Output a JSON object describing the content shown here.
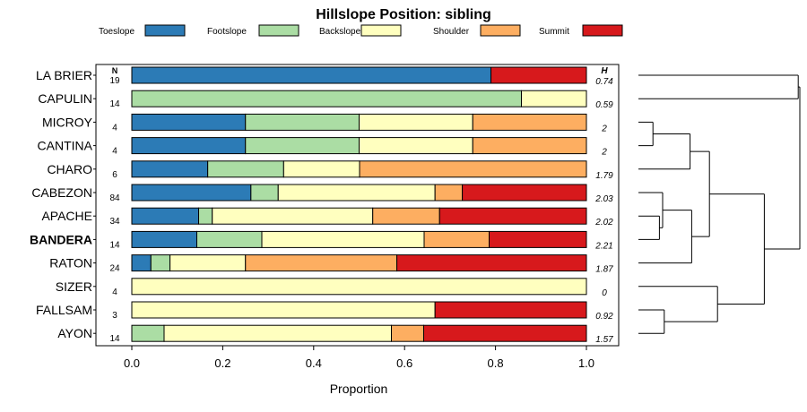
{
  "chart_data": {
    "type": "bar",
    "stacked": "horizontal-proportion",
    "title": "Hillslope Position: sibling",
    "xlabel": "Proportion",
    "ylabel": "",
    "xlim": [
      0,
      1
    ],
    "x_ticks": [
      "0.0",
      "0.2",
      "0.4",
      "0.6",
      "0.8",
      "1.0"
    ],
    "x_tick_values": [
      0,
      0.2,
      0.4,
      0.6,
      0.8,
      1.0
    ],
    "legend": [
      {
        "name": "Toeslope",
        "color": "#2C7BB6"
      },
      {
        "name": "Footslope",
        "color": "#ABDDA4"
      },
      {
        "name": "Backslope",
        "color": "#FFFFBF"
      },
      {
        "name": "Shoulder",
        "color": "#FDAE61"
      },
      {
        "name": "Summit",
        "color": "#D7191C"
      }
    ],
    "n_header": "N",
    "h_header": "H",
    "highlighted_category": "BANDERA",
    "categories": [
      "LA BRIER",
      "CAPULIN",
      "MICROY",
      "CANTINA",
      "CHARO",
      "CABEZON",
      "APACHE",
      "BANDERA",
      "RATON",
      "SIZER",
      "FALLSAM",
      "AYON"
    ],
    "n": [
      "19",
      "14",
      "4",
      "4",
      "6",
      "84",
      "34",
      "14",
      "24",
      "4",
      "3",
      "14"
    ],
    "h": [
      "0.74",
      "0.59",
      "2",
      "2",
      "1.79",
      "2.03",
      "2.02",
      "2.21",
      "1.87",
      "0",
      "0.92",
      "1.57"
    ],
    "series": [
      {
        "name": "Toeslope",
        "values": [
          0.79,
          0,
          0.25,
          0.25,
          0.167,
          0.262,
          0.147,
          0.143,
          0.042,
          0,
          0,
          0
        ]
      },
      {
        "name": "Footslope",
        "values": [
          0,
          0.857,
          0.25,
          0.25,
          0.167,
          0.06,
          0.03,
          0.143,
          0.042,
          0,
          0,
          0.071
        ]
      },
      {
        "name": "Backslope",
        "values": [
          0,
          0.143,
          0.25,
          0.25,
          0.167,
          0.345,
          0.353,
          0.357,
          0.166,
          1,
          0.667,
          0.5
        ]
      },
      {
        "name": "Shoulder",
        "values": [
          0,
          0,
          0.25,
          0.25,
          0.499,
          0.06,
          0.147,
          0.143,
          0.333,
          0,
          0,
          0.071
        ]
      },
      {
        "name": "Summit",
        "values": [
          0.21,
          0,
          0,
          0,
          0,
          0.273,
          0.323,
          0.214,
          0.417,
          0,
          0.333,
          0.358
        ]
      }
    ],
    "dendrogram": {
      "leaf_order": [
        "LA BRIER",
        "CAPULIN",
        "MICROY",
        "CANTINA",
        "CHARO",
        "CABEZON",
        "APACHE",
        "BANDERA",
        "RATON",
        "SIZER",
        "FALLSAM",
        "AYON"
      ],
      "merges": [
        {
          "a": "MICROY",
          "b": "CANTINA",
          "height": 0.1
        },
        {
          "a": "APACHE",
          "b": "BANDERA",
          "height": 0.1
        },
        {
          "a": "CABEZON",
          "b": [
            "APACHE",
            "BANDERA"
          ],
          "height": 0.15
        },
        {
          "a": "FALLSAM",
          "b": "AYON",
          "height": 0.18
        },
        {
          "a": [
            "MICROY",
            "CANTINA"
          ],
          "b": "CHARO",
          "height": 0.25
        },
        {
          "a": [
            "CABEZON",
            "APACHE",
            "BANDERA"
          ],
          "b": "RATON",
          "height": 0.4
        },
        {
          "a": "SIZER",
          "b": [
            "FALLSAM",
            "AYON"
          ],
          "height": 0.6
        },
        {
          "a": [
            "MICROY",
            "CANTINA",
            "CHARO"
          ],
          "b": [
            "CABEZON",
            "APACHE",
            "BANDERA",
            "RATON"
          ],
          "height": 0.53
        },
        {
          "a": "group1",
          "b": [
            "SIZER",
            "FALLSAM",
            "AYON"
          ],
          "height": 0.94
        },
        {
          "a": "LA BRIER",
          "b": "CAPULIN",
          "height": 1.0
        },
        {
          "a": [
            "LA BRIER",
            "CAPULIN"
          ],
          "b": "rest",
          "height": 1.0
        }
      ]
    }
  }
}
